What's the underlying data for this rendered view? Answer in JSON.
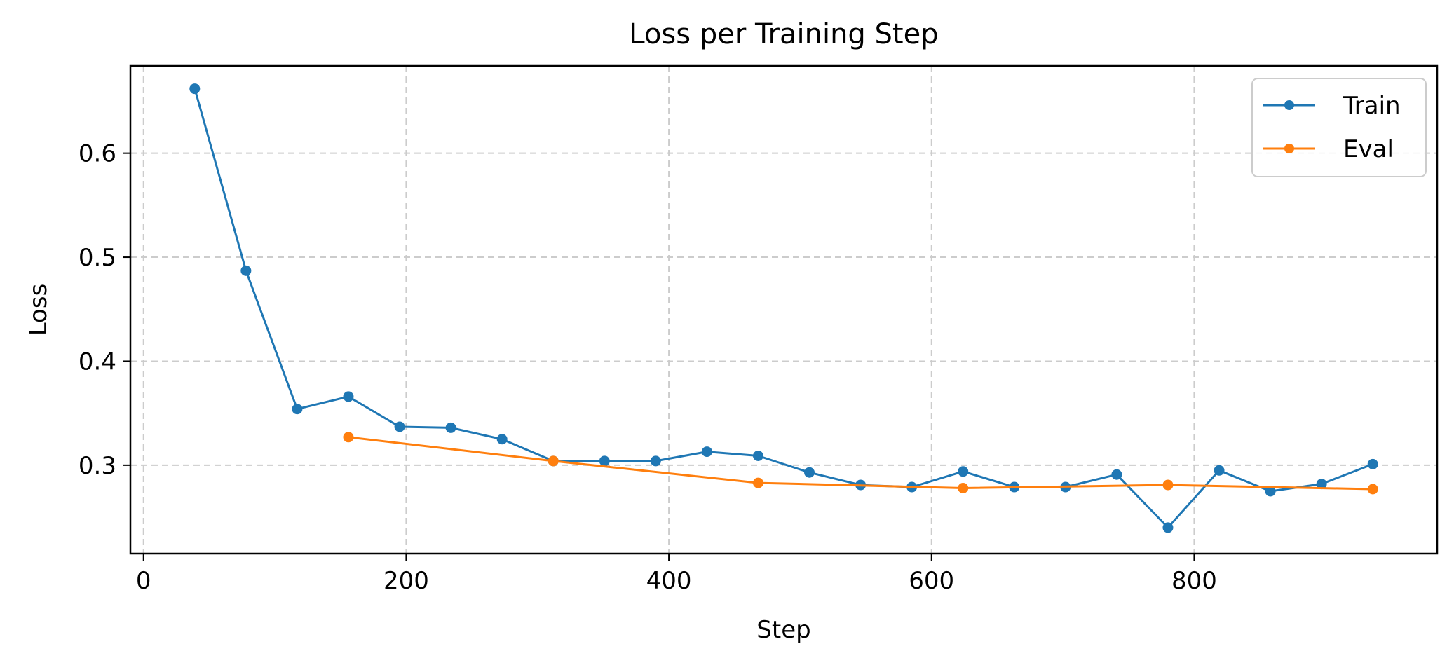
{
  "chart_data": {
    "type": "line",
    "title": "Loss per Training Step",
    "xlabel": "Step",
    "ylabel": "Loss",
    "xlim": [
      -10,
      985
    ],
    "ylim": [
      0.215,
      0.684
    ],
    "xticks": [
      0,
      200,
      400,
      600,
      800
    ],
    "yticks": [
      0.3,
      0.4,
      0.5,
      0.6
    ],
    "ytick_labels": [
      "0.3",
      "0.4",
      "0.5",
      "0.6"
    ],
    "xtick_labels": [
      "0",
      "200",
      "400",
      "600",
      "800"
    ],
    "grid": true,
    "legend_position": "top-right",
    "series": [
      {
        "name": "Train",
        "color": "#1f77b4",
        "x": [
          39,
          78,
          117,
          156,
          195,
          234,
          273,
          312,
          351,
          390,
          429,
          468,
          507,
          546,
          585,
          624,
          663,
          702,
          741,
          780,
          819,
          858,
          897,
          936
        ],
        "y": [
          0.662,
          0.487,
          0.354,
          0.366,
          0.337,
          0.336,
          0.325,
          0.304,
          0.304,
          0.304,
          0.313,
          0.309,
          0.293,
          0.281,
          0.279,
          0.294,
          0.279,
          0.279,
          0.291,
          0.24,
          0.295,
          0.275,
          0.282,
          0.301
        ]
      },
      {
        "name": "Eval",
        "color": "#ff7f0e",
        "x": [
          156,
          312,
          468,
          624,
          780,
          936
        ],
        "y": [
          0.327,
          0.304,
          0.283,
          0.278,
          0.281,
          0.277
        ]
      }
    ]
  }
}
